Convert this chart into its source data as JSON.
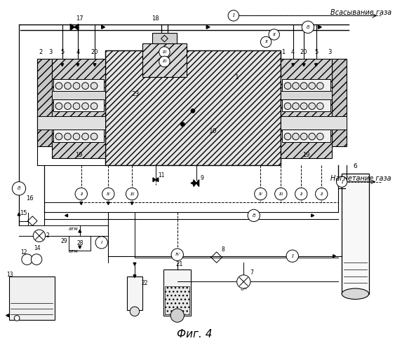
{
  "title": "Фиг. 4",
  "text_suction": "Всасывание газа",
  "text_discharge": "Нагнетание газа",
  "fig_w": 5.73,
  "fig_h": 5.0,
  "dpi": 100
}
